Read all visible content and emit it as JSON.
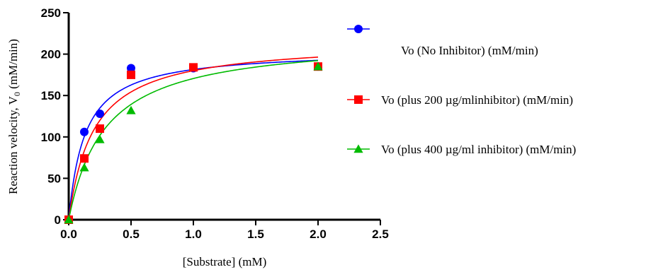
{
  "chart_data": {
    "type": "scatter",
    "xlabel": "[Substrate] (mM)",
    "ylabel_main": "Reaction velocity, V",
    "ylabel_sub": "0",
    "ylabel_tail": " (mM/min)",
    "xlim": [
      0,
      2.5
    ],
    "ylim": [
      0,
      250
    ],
    "xticks": [
      "0.0",
      "0.5",
      "1.0",
      "1.5",
      "2.0",
      "2.5"
    ],
    "yticks": [
      "0",
      "50",
      "100",
      "150",
      "200",
      "250"
    ],
    "grid": false,
    "legend_position": "right",
    "series": [
      {
        "name": "Vo (No Inhibitor) (mM/min)",
        "color": "#0000ff",
        "marker": "circle",
        "x": [
          0,
          0.125,
          0.25,
          0.5,
          1.0,
          2.0
        ],
        "y": [
          0,
          106,
          128,
          183,
          183,
          185
        ],
        "fit": {
          "vmax": 205,
          "km": 0.13
        }
      },
      {
        "name": "Vo (plus 200 µg/mlinhibitor) (mM/min)",
        "color": "#ff0000",
        "marker": "square",
        "x": [
          0,
          0.125,
          0.25,
          0.5,
          1.0,
          2.0
        ],
        "y": [
          0,
          74,
          110,
          175,
          184,
          185
        ],
        "fit": {
          "vmax": 216,
          "km": 0.2
        }
      },
      {
        "name": "Vo (plus 400 µg/ml inhibitor) (mM/min)",
        "color": "#00bb00",
        "marker": "triangle",
        "x": [
          0,
          0.125,
          0.25,
          0.5,
          2.0
        ],
        "y": [
          0,
          63,
          97,
          132,
          185
        ],
        "fit": {
          "vmax": 220,
          "km": 0.29
        }
      }
    ]
  }
}
